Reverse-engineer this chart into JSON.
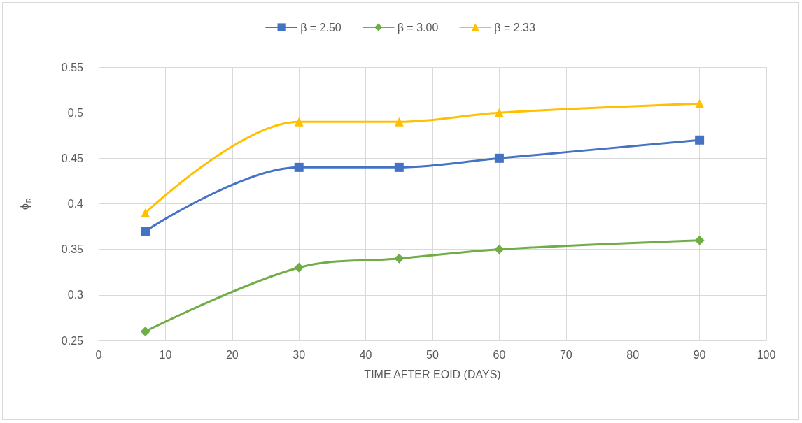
{
  "chart_data": {
    "type": "line",
    "xlabel": "TIME AFTER EOID (DAYS)",
    "ylabel": "ϕ$_{R}$",
    "x": [
      7,
      30,
      45,
      60,
      90
    ],
    "series": [
      {
        "name": "β = 2.50",
        "color": "#4472c4",
        "marker": "square",
        "values": [
          0.37,
          0.44,
          0.44,
          0.45,
          0.47
        ]
      },
      {
        "name": "β = 3.00",
        "color": "#70ad47",
        "marker": "diamond",
        "values": [
          0.26,
          0.33,
          0.34,
          0.35,
          0.36
        ]
      },
      {
        "name": "β = 2.33",
        "color": "#ffc000",
        "marker": "triangle",
        "values": [
          0.39,
          0.49,
          0.49,
          0.5,
          0.51
        ]
      }
    ],
    "xlim": [
      0,
      100
    ],
    "xticks": [
      0,
      10,
      20,
      30,
      40,
      50,
      60,
      70,
      80,
      90,
      100
    ],
    "ylim": [
      0.25,
      0.55
    ],
    "yticks": [
      0.25,
      0.3,
      0.35,
      0.4,
      0.45,
      0.5,
      0.55
    ],
    "grid": true,
    "legend": "top",
    "line_style": "solid"
  }
}
